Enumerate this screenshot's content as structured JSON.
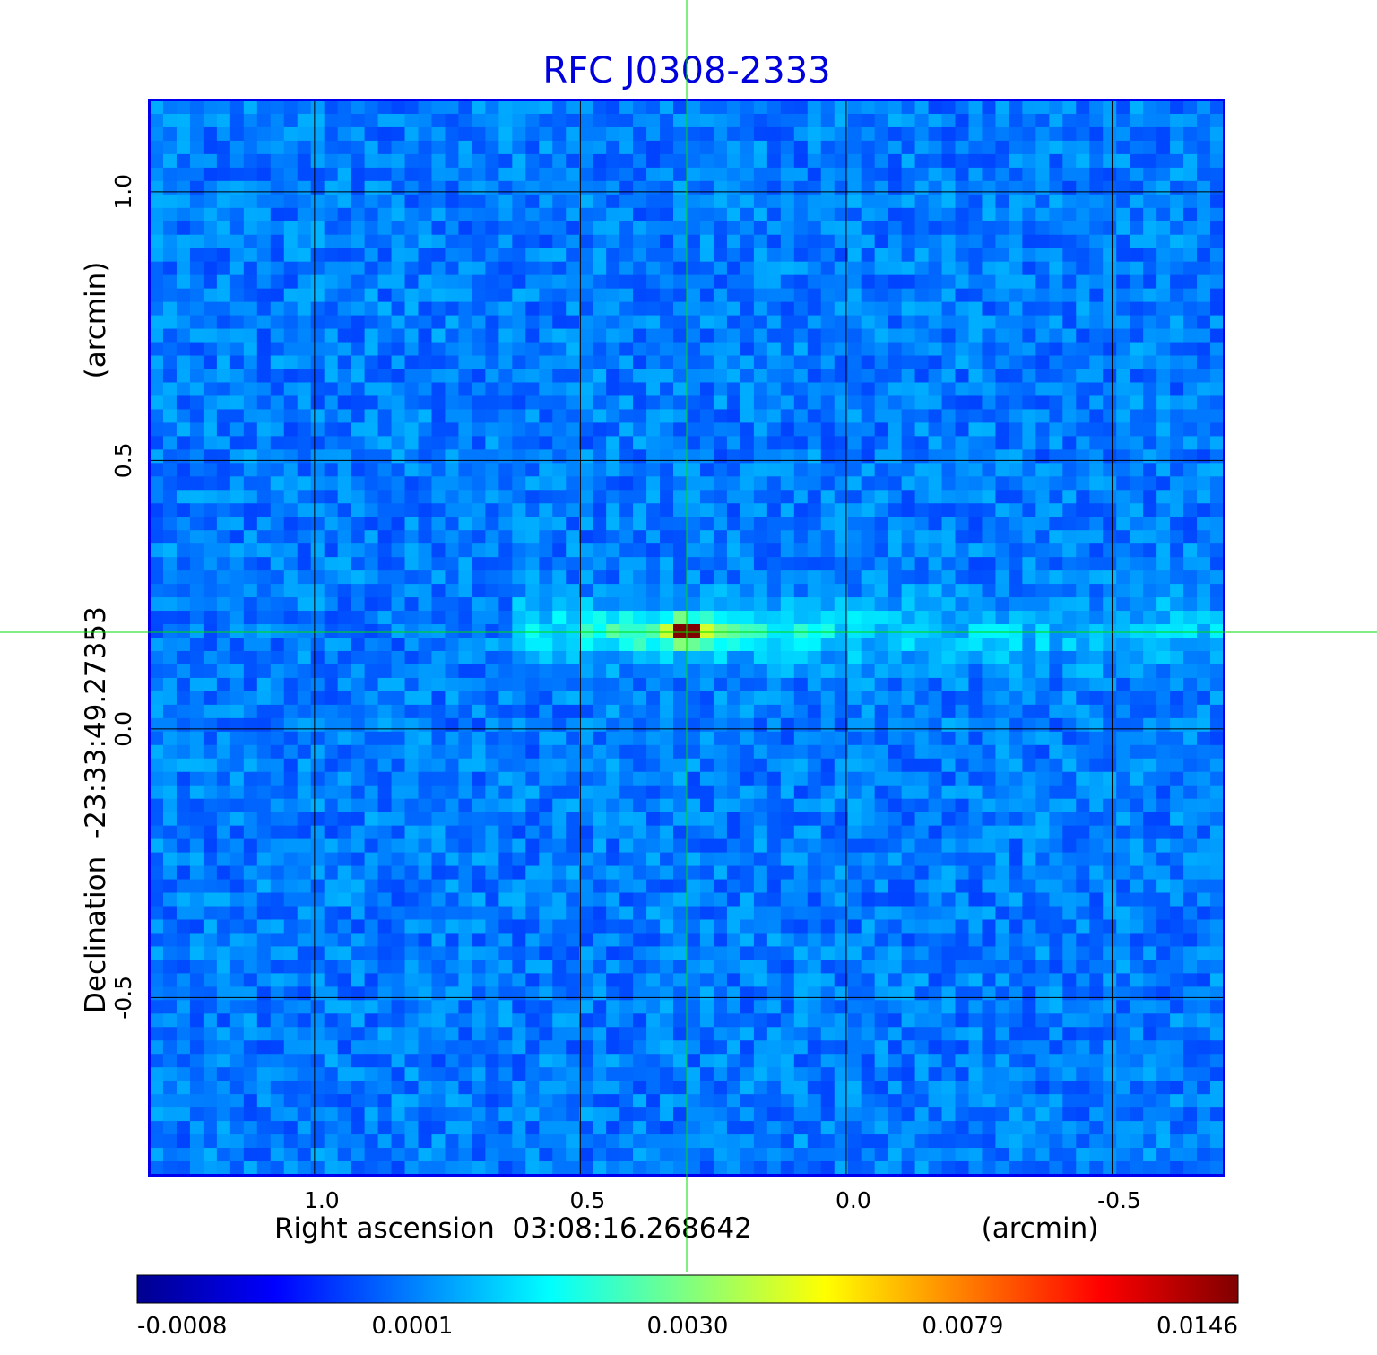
{
  "chart_data": {
    "type": "heatmap",
    "title": "RFC J0308-2333",
    "xlabel": "Right ascension  03:08:16.268642",
    "xunit": "(arcmin)",
    "ylabel": "Declination  -23:33:49.27353",
    "yunit": "(arcmin)",
    "x_ticks": [
      "1.0",
      "0.5",
      "0.0",
      "-0.5"
    ],
    "y_ticks": [
      "1.0",
      "0.5",
      "0.0",
      "-0.5"
    ],
    "xlim": [
      1.31,
      -0.71
    ],
    "ylim": [
      -0.83,
      1.17
    ],
    "grid": true,
    "crosshair": {
      "x": 0.3,
      "y": 0.18
    },
    "colorbar": {
      "colormap": "jet",
      "ticks": [
        "-0.0008",
        "0.0001",
        "0.0030",
        "0.0079",
        "0.0146"
      ]
    },
    "source": {
      "x": 0.3,
      "y": 0.18,
      "peak": 0.0146
    },
    "jet": {
      "x": [
        0.55,
        -0.71
      ],
      "y": 0.18
    },
    "colors": {
      "title": "#0000dd",
      "frame": "#0000ee",
      "crosshair": "#00dd00",
      "grid": "#000000"
    }
  }
}
